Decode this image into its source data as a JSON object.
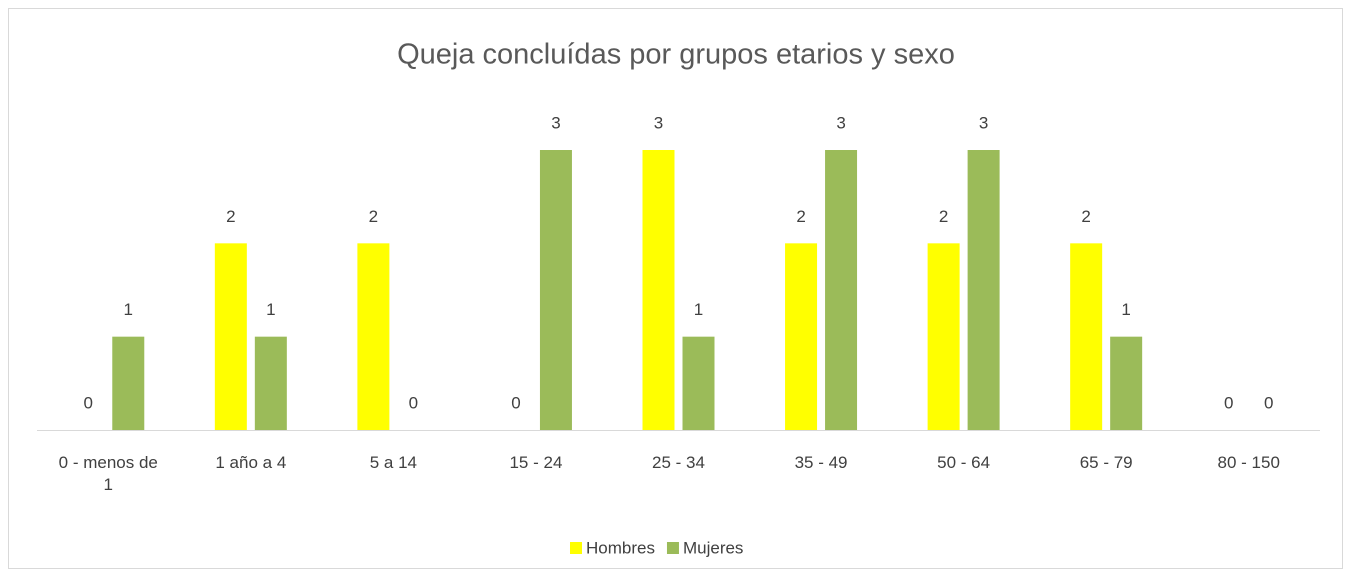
{
  "chart_data": {
    "type": "bar",
    "title": "Queja concluídas por grupos etarios y sexo",
    "categories": [
      "0 - menos de 1",
      "1 año a 4",
      "5 a 14",
      "15 - 24",
      "25 - 34",
      "35 - 49",
      "50 - 64",
      "65 - 79",
      "80 - 150"
    ],
    "series": [
      {
        "name": "Hombres",
        "color": "#ffff00",
        "values": [
          0,
          2,
          2,
          0,
          3,
          2,
          2,
          2,
          0
        ]
      },
      {
        "name": "Mujeres",
        "color": "#9bbb59",
        "values": [
          1,
          1,
          0,
          3,
          1,
          3,
          3,
          1,
          0
        ]
      }
    ],
    "legend": "bottom"
  }
}
